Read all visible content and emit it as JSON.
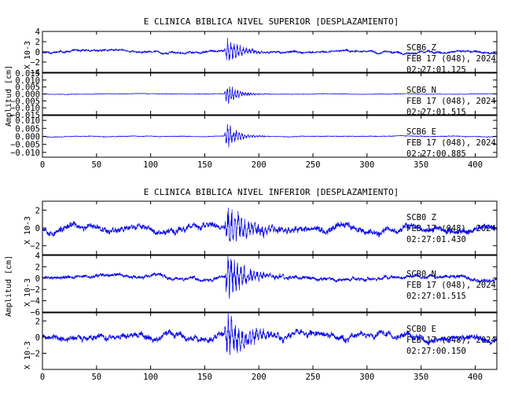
{
  "chart_data": [
    {
      "type": "line",
      "title": "E CLINICA BIBLICA NIVEL SUPERIOR [DESPLAZAMIENTO]",
      "ylabel": "Amplitud [cm]",
      "xlim": [
        0,
        420
      ],
      "xticks": [
        0,
        50,
        100,
        150,
        200,
        250,
        300,
        350,
        400
      ],
      "xtick_labels": [
        "0",
        "50",
        "100",
        "150",
        "200",
        "250",
        "300",
        "350",
        "400"
      ],
      "grid": false,
      "line_color": "#0000ee",
      "panels": [
        {
          "multiplier": "X 10-3",
          "ylim": [
            -4,
            4
          ],
          "yticks": [
            -4,
            -2,
            0,
            2,
            4
          ],
          "ytick_labels": [
            "−4",
            "−2",
            "0",
            "2",
            "4"
          ],
          "annotation": [
            "SCB6   Z",
            "FEB 17 (048), 2024",
            "02:27:01.125"
          ],
          "series": {
            "event_time": 168,
            "noise": 0.33,
            "amp": 3.8,
            "decay": 13,
            "carrier": 0.42,
            "seed": 11
          }
        },
        {
          "multiplier": "",
          "ylim": [
            -0.015,
            0.015
          ],
          "yticks": [
            -0.015,
            -0.01,
            -0.005,
            0.0,
            0.005,
            0.01,
            0.015
          ],
          "ytick_labels": [
            "−0.015",
            "−0.010",
            "−0.005",
            "0.000",
            "0.005",
            "0.010",
            "0.015"
          ],
          "annotation": [
            "SCB6   N",
            "FEB 17 (048), 2024",
            "02:27:01.515"
          ],
          "series": {
            "event_time": 168,
            "noise": 0.00025,
            "amp": 0.0115,
            "decay": 10,
            "carrier": 0.48,
            "seed": 23
          }
        },
        {
          "multiplier": "",
          "ylim": [
            -0.013,
            0.013
          ],
          "yticks": [
            -0.01,
            -0.005,
            0.0,
            0.005,
            0.01
          ],
          "ytick_labels": [
            "−0.010",
            "−0.005",
            "0.000",
            "0.005",
            "0.010"
          ],
          "annotation": [
            "SCB6   E",
            "FEB 17 (048), 2024",
            "02:27:00.885"
          ],
          "series": {
            "event_time": 168,
            "noise": 0.0003,
            "amp": 0.0125,
            "decay": 10,
            "carrier": 0.45,
            "seed": 37
          }
        }
      ]
    },
    {
      "type": "line",
      "title": "E CLINICA BIBLICA NIVEL INFERIOR [DESPLAZAMIENTO]",
      "ylabel": "Amplitud [cm]",
      "xlim": [
        0,
        420
      ],
      "xticks": [
        0,
        50,
        100,
        150,
        200,
        250,
        300,
        350,
        400
      ],
      "xtick_labels": [
        "0",
        "50",
        "100",
        "150",
        "200",
        "250",
        "300",
        "350",
        "400"
      ],
      "grid": false,
      "line_color": "#0000ee",
      "panels": [
        {
          "multiplier": "X 10-3",
          "ylim": [
            -3,
            3
          ],
          "yticks": [
            -2,
            0,
            2
          ],
          "ytick_labels": [
            "−2",
            "0",
            "2"
          ],
          "annotation": [
            "SCB0   Z",
            "FEB 17 (048), 2024",
            "02:27:01.430"
          ],
          "series": {
            "event_time": 168,
            "noise": 0.55,
            "amp": 2.8,
            "decay": 22,
            "carrier": 0.38,
            "seed": 53
          }
        },
        {
          "multiplier": "X 10-3",
          "ylim": [
            -6,
            4
          ],
          "yticks": [
            -6,
            -4,
            -2,
            0,
            2,
            4
          ],
          "ytick_labels": [
            "−6",
            "−4",
            "−2",
            "0",
            "2",
            "4"
          ],
          "annotation": [
            "SCB0   N",
            "FEB 17 (048), 2024",
            "02:27:01.515"
          ],
          "series": {
            "event_time": 168,
            "noise": 0.5,
            "amp": 5.5,
            "decay": 18,
            "carrier": 0.4,
            "seed": 71
          }
        },
        {
          "multiplier": "X 10-3",
          "ylim": [
            -4,
            3
          ],
          "yticks": [
            -2,
            0,
            2
          ],
          "ytick_labels": [
            "−2",
            "0",
            "2"
          ],
          "annotation": [
            "SCB0   E",
            "FEB 17 (048), 2024",
            "02:27:00.150"
          ],
          "series": {
            "event_time": 168,
            "noise": 0.6,
            "amp": 3.6,
            "decay": 20,
            "carrier": 0.36,
            "seed": 89
          }
        }
      ]
    }
  ]
}
